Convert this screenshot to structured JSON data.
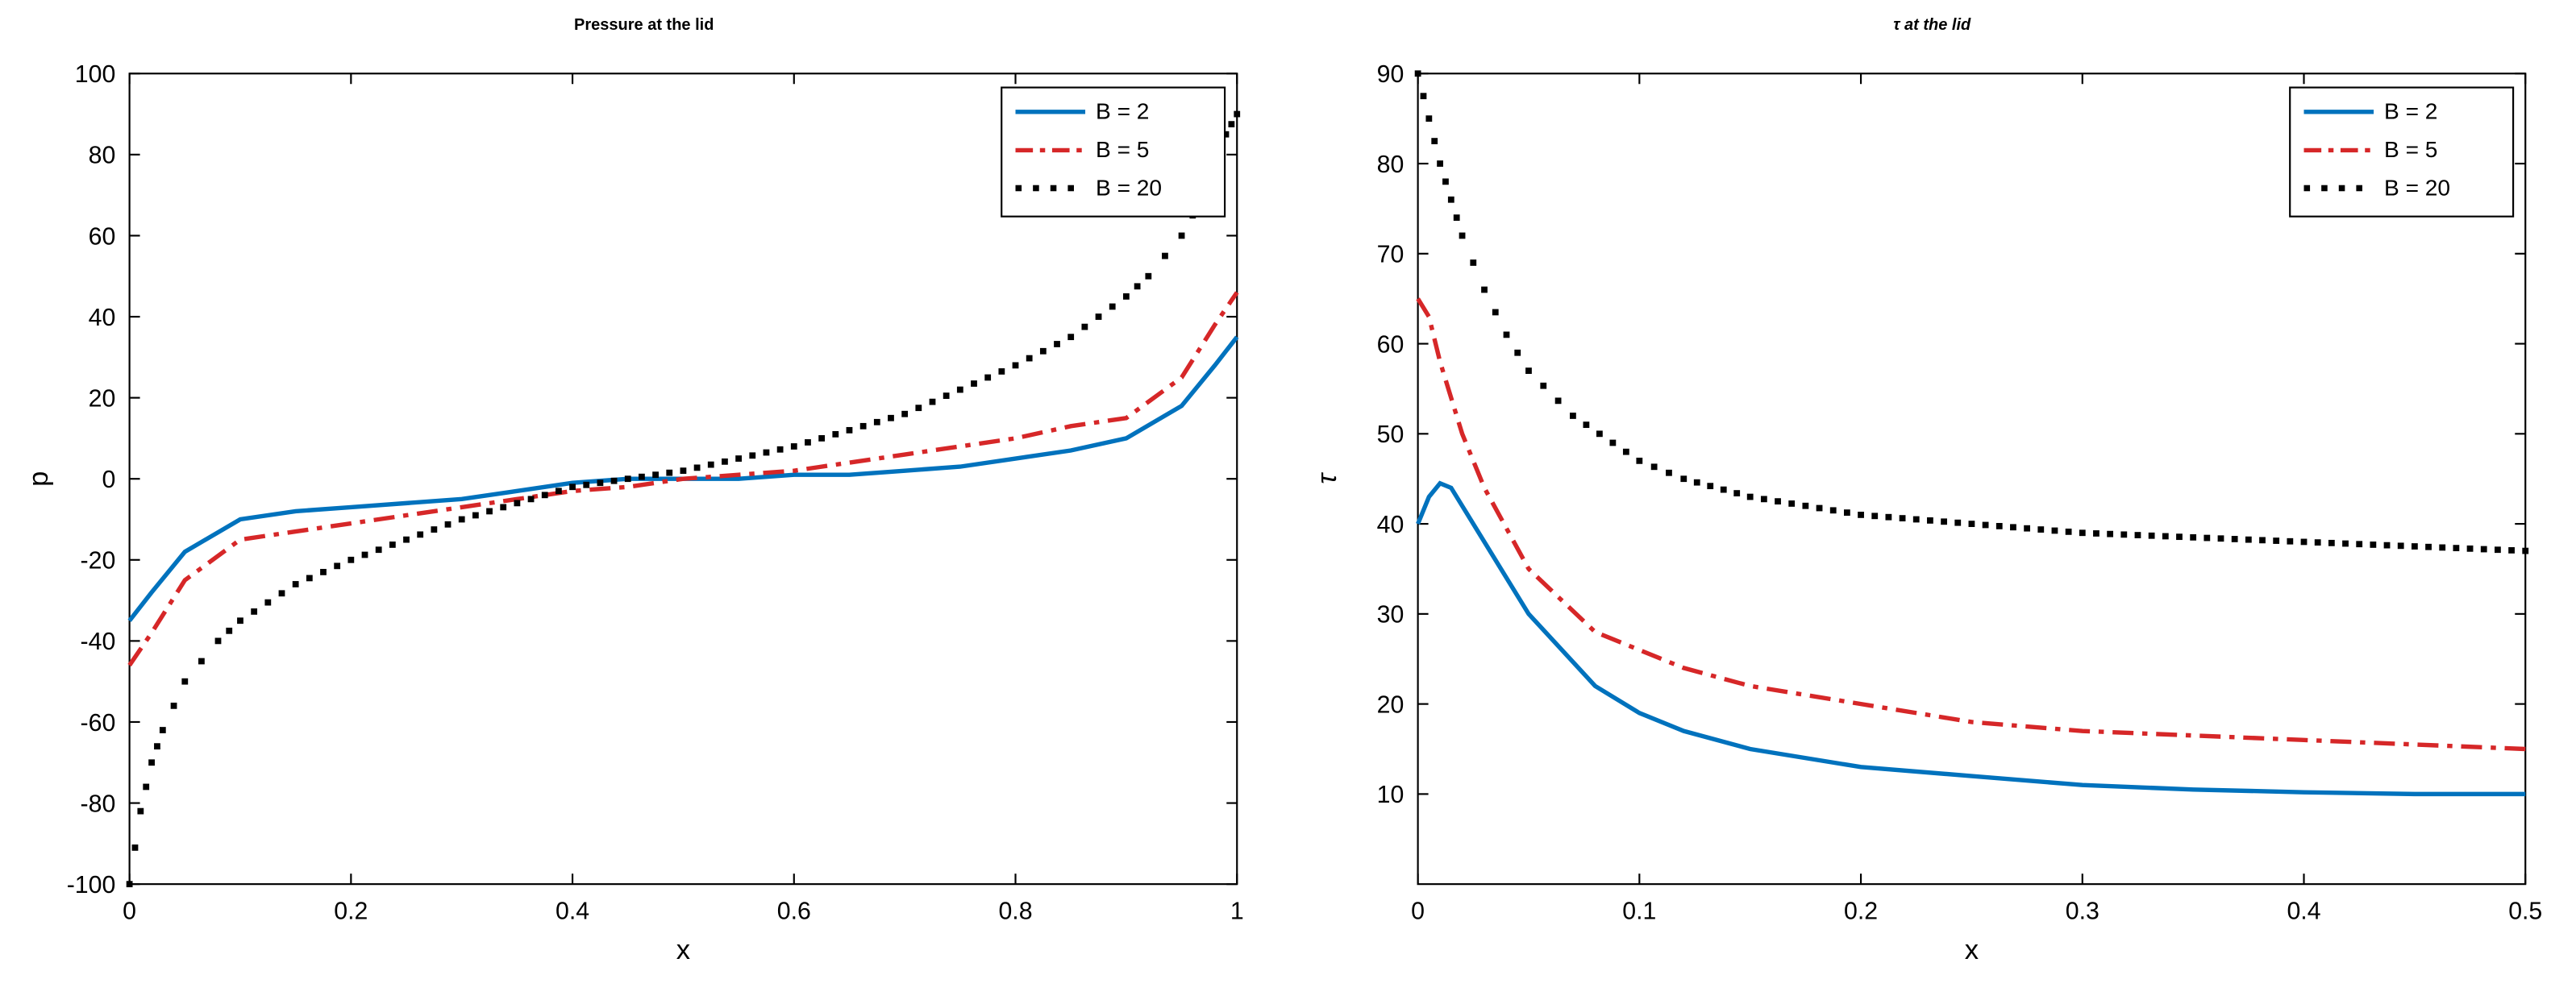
{
  "chart1": {
    "type": "line",
    "title": "Pressure at the lid",
    "title_fontsize": 20,
    "title_fontweight": "bold",
    "xlabel": "x",
    "ylabel": "p",
    "label_fontsize": 16,
    "tick_fontsize": 14,
    "xlim": [
      0,
      1
    ],
    "ylim": [
      -100,
      100
    ],
    "xticks": [
      0,
      0.2,
      0.4,
      0.6,
      0.8,
      1
    ],
    "yticks": [
      -100,
      -80,
      -60,
      -40,
      -20,
      0,
      20,
      40,
      60,
      80,
      100
    ],
    "background_color": "#ffffff",
    "border_color": "#000000",
    "series": [
      {
        "label": "B = 2",
        "color": "#0072bd",
        "line_style": "solid",
        "line_width": 2.5,
        "x": [
          0,
          0.02,
          0.05,
          0.1,
          0.15,
          0.2,
          0.25,
          0.3,
          0.35,
          0.4,
          0.45,
          0.5,
          0.55,
          0.6,
          0.65,
          0.7,
          0.75,
          0.8,
          0.85,
          0.9,
          0.95,
          0.98,
          1
        ],
        "y": [
          -35,
          -28,
          -18,
          -10,
          -8,
          -7,
          -6,
          -5,
          -3,
          -1,
          0,
          0,
          0,
          1,
          1,
          2,
          3,
          5,
          7,
          10,
          18,
          28,
          35
        ]
      },
      {
        "label": "B = 5",
        "color": "#d62728",
        "line_style": "dashdot",
        "line_width": 2.5,
        "x": [
          0,
          0.02,
          0.05,
          0.1,
          0.15,
          0.2,
          0.25,
          0.3,
          0.35,
          0.4,
          0.45,
          0.5,
          0.55,
          0.6,
          0.65,
          0.7,
          0.75,
          0.8,
          0.85,
          0.9,
          0.95,
          0.98,
          1
        ],
        "y": [
          -46,
          -38,
          -25,
          -15,
          -13,
          -11,
          -9,
          -7,
          -5,
          -3,
          -2,
          0,
          1,
          2,
          4,
          6,
          8,
          10,
          13,
          15,
          25,
          38,
          46
        ]
      },
      {
        "label": "B = 20",
        "color": "#000000",
        "line_style": "dotted",
        "line_width": 2.5,
        "x": [
          0,
          0.01,
          0.02,
          0.03,
          0.05,
          0.08,
          0.1,
          0.15,
          0.2,
          0.25,
          0.3,
          0.35,
          0.4,
          0.45,
          0.5,
          0.55,
          0.6,
          0.65,
          0.7,
          0.75,
          0.8,
          0.85,
          0.9,
          0.92,
          0.95,
          0.97,
          0.98,
          0.99,
          1
        ],
        "y": [
          -100,
          -82,
          -70,
          -62,
          -50,
          -40,
          -35,
          -26,
          -20,
          -15,
          -10,
          -6,
          -2,
          0,
          2,
          5,
          8,
          12,
          16,
          22,
          28,
          35,
          45,
          50,
          60,
          70,
          78,
          85,
          90
        ]
      }
    ],
    "legend": {
      "position": "top-right",
      "items": [
        "B = 2",
        "B = 5",
        "B = 20"
      ]
    }
  },
  "chart2": {
    "type": "line",
    "title": "τ at the lid",
    "title_fontsize": 20,
    "title_fontweight": "bold",
    "title_style": "italic",
    "xlabel": "x",
    "ylabel": "τ",
    "label_fontsize": 16,
    "tick_fontsize": 14,
    "xlim": [
      0,
      0.5
    ],
    "ylim": [
      0,
      90
    ],
    "xticks": [
      0,
      0.1,
      0.2,
      0.3,
      0.4,
      0.5
    ],
    "yticks": [
      10,
      20,
      30,
      40,
      50,
      60,
      70,
      80,
      90
    ],
    "background_color": "#ffffff",
    "border_color": "#000000",
    "series": [
      {
        "label": "B = 2",
        "color": "#0072bd",
        "line_style": "solid",
        "line_width": 2.5,
        "x": [
          0,
          0.005,
          0.01,
          0.015,
          0.02,
          0.03,
          0.05,
          0.08,
          0.1,
          0.12,
          0.15,
          0.2,
          0.25,
          0.3,
          0.35,
          0.4,
          0.45,
          0.5
        ],
        "y": [
          40,
          43,
          44.5,
          44,
          42,
          38,
          30,
          22,
          19,
          17,
          15,
          13,
          12,
          11,
          10.5,
          10.2,
          10,
          10
        ]
      },
      {
        "label": "B = 5",
        "color": "#d62728",
        "line_style": "dashdot",
        "line_width": 2.5,
        "x": [
          0,
          0.005,
          0.01,
          0.02,
          0.03,
          0.05,
          0.08,
          0.1,
          0.12,
          0.15,
          0.2,
          0.25,
          0.3,
          0.35,
          0.4,
          0.45,
          0.5
        ],
        "y": [
          65,
          63,
          58,
          50,
          44,
          35,
          28,
          26,
          24,
          22,
          20,
          18,
          17,
          16.5,
          16,
          15.5,
          15
        ]
      },
      {
        "label": "B = 20",
        "color": "#000000",
        "line_style": "dotted",
        "line_width": 2.5,
        "x": [
          0,
          0.005,
          0.01,
          0.015,
          0.02,
          0.03,
          0.04,
          0.05,
          0.07,
          0.1,
          0.12,
          0.15,
          0.2,
          0.25,
          0.3,
          0.35,
          0.4,
          0.45,
          0.5
        ],
        "y": [
          90,
          85,
          80,
          76,
          72,
          66,
          61,
          57,
          52,
          47,
          45,
          43,
          41,
          40,
          39,
          38.5,
          38,
          37.5,
          37
        ]
      }
    ],
    "legend": {
      "position": "top-right",
      "items": [
        "B = 2",
        "B = 5",
        "B = 20"
      ]
    }
  }
}
